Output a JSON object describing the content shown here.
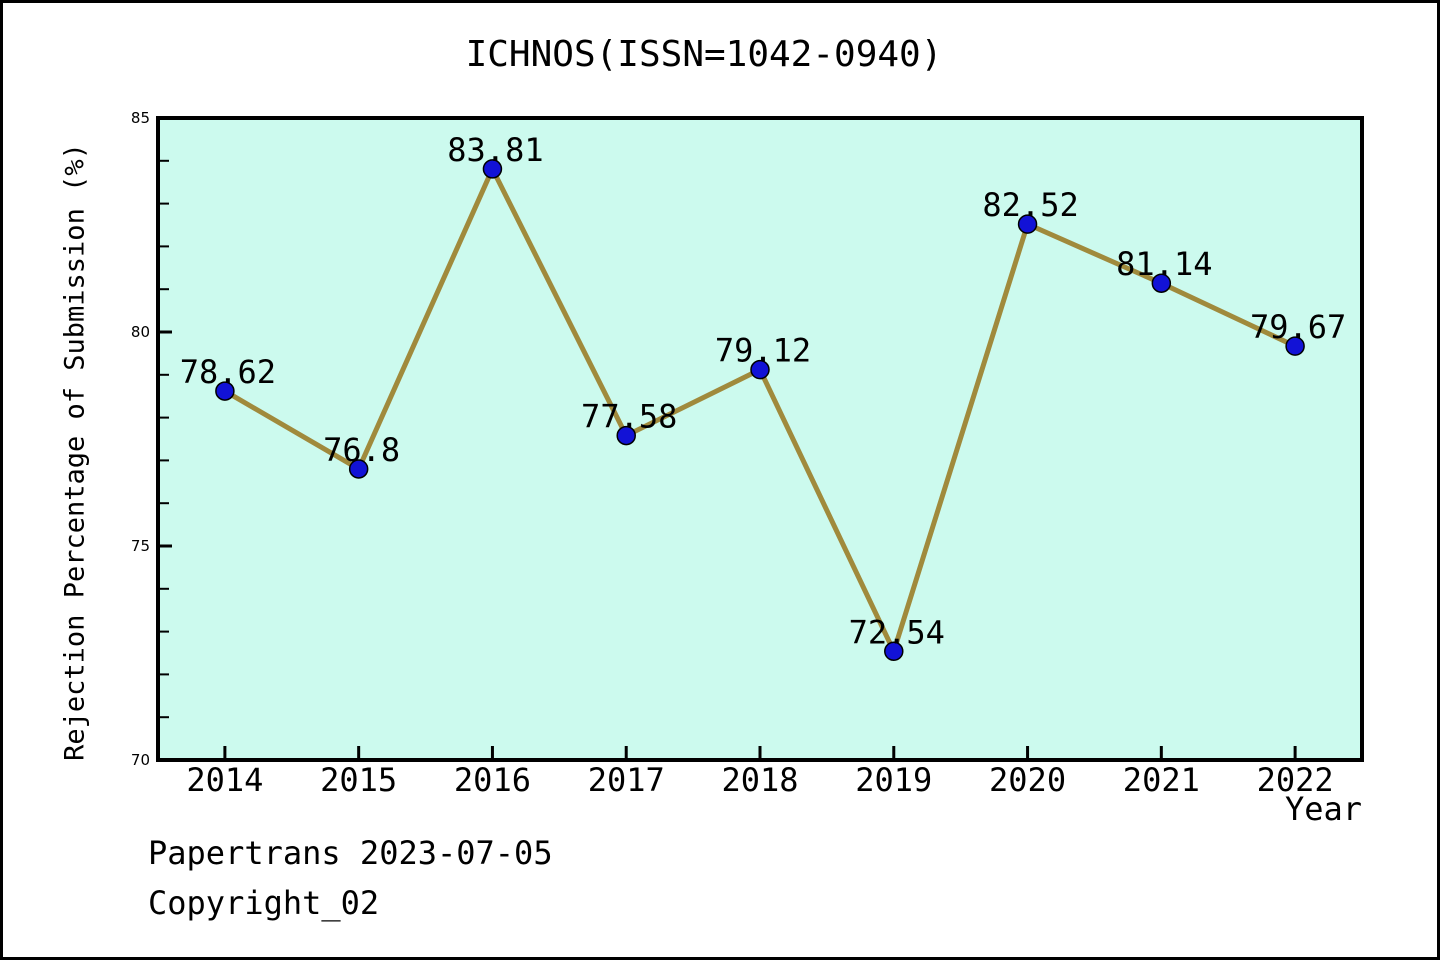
{
  "chart_data": {
    "type": "line",
    "title": "ICHNOS(ISSN=1042-0940)",
    "xlabel": "Year",
    "ylabel": "Rejection Percentage of Submission (%)",
    "categories": [
      2014,
      2015,
      2016,
      2017,
      2018,
      2019,
      2020,
      2021,
      2022
    ],
    "values": [
      78.62,
      76.8,
      83.81,
      77.58,
      79.12,
      72.54,
      82.52,
      81.14,
      79.67
    ],
    "point_labels": [
      "78.62",
      "76.8",
      "83.81",
      "77.58",
      "79.12",
      "72.54",
      "82.52",
      "81.14",
      "79.67"
    ],
    "xlim": [
      2013.5,
      2022.5
    ],
    "ylim": [
      70,
      85
    ],
    "yticks_major": [
      70,
      75,
      80,
      85
    ],
    "ytick_labels": [
      "70",
      "75",
      "80",
      "85"
    ],
    "ytick_minor_step": 1,
    "grid": false,
    "legend": null,
    "colors": {
      "line": "#a08a3c",
      "marker": "#1212d6",
      "marker_edge": "#000000",
      "plot_bg": "#ccfaee",
      "spine": "#000000",
      "text": "#000000",
      "figure_bg": "#ffffff"
    }
  },
  "footer": {
    "line1": "Papertrans 2023-07-05",
    "line2": "Copyright_02"
  }
}
